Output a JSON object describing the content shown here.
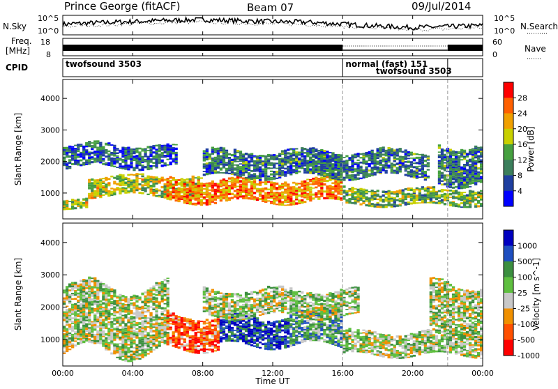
{
  "header": {
    "station": "Prince George (fitACF)",
    "beam": "Beam 07",
    "date": "09/Jul/2014"
  },
  "labels": {
    "nsky": "N.Sky",
    "nsearch": "N.Search",
    "freq_line1": "Freq.",
    "freq_line2": "[MHz]",
    "nave": "Nave",
    "cpid": "CPID",
    "time_axis": "Time UT"
  },
  "cpid_segments": [
    {
      "label": "twofsound 3503",
      "start_hour": 0,
      "end_hour": 16
    },
    {
      "label": "normal (fast) 151",
      "start_hour": 16,
      "end_hour": 22
    },
    {
      "label": "twofsound 3503",
      "start_hour": 22,
      "end_hour": 24
    }
  ],
  "chart_data": [
    {
      "type": "line",
      "name": "noise",
      "y_left_label": "N.Sky",
      "y_right_label": "N.Search",
      "left_ticks": [
        "10^5",
        "10^0"
      ],
      "right_ticks": [
        "10^5",
        "10^0"
      ],
      "x_range_hours": [
        0,
        24
      ],
      "sky_noise_profile": [
        {
          "hour": 0,
          "level": 0.55
        },
        {
          "hour": 2,
          "level": 0.62
        },
        {
          "hour": 4,
          "level": 0.68
        },
        {
          "hour": 6,
          "level": 0.74
        },
        {
          "hour": 8,
          "level": 0.78
        },
        {
          "hour": 10,
          "level": 0.72
        },
        {
          "hour": 12,
          "level": 0.68
        },
        {
          "hour": 14,
          "level": 0.65
        },
        {
          "hour": 16,
          "level": 0.55
        },
        {
          "hour": 18,
          "level": 0.45
        },
        {
          "hour": 20,
          "level": 0.38
        },
        {
          "hour": 22,
          "level": 0.42
        },
        {
          "hour": 24,
          "level": 0.48
        }
      ]
    },
    {
      "type": "line",
      "name": "frequency",
      "y_left_label": "Freq. [MHz]",
      "y_right_label": "Nave",
      "left_ticks": [
        "18",
        "8"
      ],
      "right_ticks": [
        "60",
        "0"
      ],
      "x_range_hours": [
        0,
        24
      ],
      "solid_band_hours": [
        [
          0,
          16
        ],
        [
          22,
          24
        ]
      ],
      "dotted_band_hours": [
        [
          16,
          22
        ]
      ]
    },
    {
      "type": "heatmap",
      "name": "power",
      "ylabel": "Slant Range [km]",
      "yticks": [
        1000,
        2000,
        3000,
        4000
      ],
      "ylim": [
        180,
        4600
      ],
      "x_range_hours": [
        0,
        24
      ],
      "colorbar_label": "Power [dB]",
      "colorbar_ticks": [
        "4",
        "8",
        "12",
        "16",
        "20",
        "24",
        "28"
      ],
      "colorbar_range": [
        0,
        32
      ],
      "palette": [
        "#0000ff",
        "#1f3fa0",
        "#3c7f5c",
        "#46a040",
        "#c8d000",
        "#f0a000",
        "#ff6000",
        "#ff0000"
      ],
      "echo_bands": [
        {
          "hour_start": 0.0,
          "hour_end": 1.5,
          "range_lo": 500,
          "range_hi": 800,
          "level": 0.55
        },
        {
          "hour_start": 0.0,
          "hour_end": 6.5,
          "range_lo": 1800,
          "range_hi": 2500,
          "level": 0.25
        },
        {
          "hour_start": 1.5,
          "hour_end": 8.0,
          "range_lo": 900,
          "range_hi": 1500,
          "level": 0.55
        },
        {
          "hour_start": 6.0,
          "hour_end": 16.0,
          "range_lo": 700,
          "range_hi": 1400,
          "level": 0.75
        },
        {
          "hour_start": 8.0,
          "hour_end": 16.0,
          "range_lo": 1500,
          "range_hi": 2300,
          "level": 0.3
        },
        {
          "hour_start": 14.0,
          "hour_end": 21.0,
          "range_lo": 1500,
          "range_hi": 2300,
          "level": 0.3
        },
        {
          "hour_start": 16.0,
          "hour_end": 24.0,
          "range_lo": 600,
          "range_hi": 1100,
          "level": 0.45
        },
        {
          "hour_start": 21.5,
          "hour_end": 24.0,
          "range_lo": 1300,
          "range_hi": 2500,
          "level": 0.3
        }
      ]
    },
    {
      "type": "heatmap",
      "name": "velocity",
      "ylabel": "Slant Range [km]",
      "yticks": [
        1000,
        2000,
        3000,
        4000
      ],
      "ylim": [
        180,
        4600
      ],
      "x_range_hours": [
        0,
        24
      ],
      "colorbar_label": "Velocity [m s^-1]",
      "colorbar_ticks": [
        "1000",
        "500",
        "100",
        "25",
        "-25",
        "-100",
        "-500",
        "-1000"
      ],
      "palette": [
        "#0000c0",
        "#1f4fc0",
        "#3c8f40",
        "#5fbf40",
        "#c8c8c8",
        "#f09000",
        "#ff5000",
        "#ff0000"
      ],
      "echo_bands": [
        {
          "hour_start": 0.0,
          "hour_end": 6.0,
          "range_lo": 600,
          "range_hi": 2600,
          "level": 0.5
        },
        {
          "hour_start": 6.0,
          "hour_end": 9.0,
          "range_lo": 700,
          "range_hi": 1700,
          "level": 0.8
        },
        {
          "hour_start": 9.0,
          "hour_end": 13.0,
          "range_lo": 800,
          "range_hi": 1700,
          "level": 0.15
        },
        {
          "hour_start": 13.0,
          "hour_end": 16.0,
          "range_lo": 800,
          "range_hi": 1800,
          "level": 0.35
        },
        {
          "hour_start": 8.0,
          "hour_end": 17.0,
          "range_lo": 1700,
          "range_hi": 2500,
          "level": 0.5
        },
        {
          "hour_start": 16.0,
          "hour_end": 24.0,
          "range_lo": 500,
          "range_hi": 1200,
          "level": 0.5
        },
        {
          "hour_start": 21.0,
          "hour_end": 24.0,
          "range_lo": 1200,
          "range_hi": 2700,
          "level": 0.5
        }
      ]
    }
  ],
  "time_axis_ticks": [
    "00:00",
    "04:00",
    "08:00",
    "12:00",
    "16:00",
    "20:00",
    "00:00"
  ],
  "colors": {
    "frame": "#000000",
    "divider": "#9a9a9a"
  }
}
